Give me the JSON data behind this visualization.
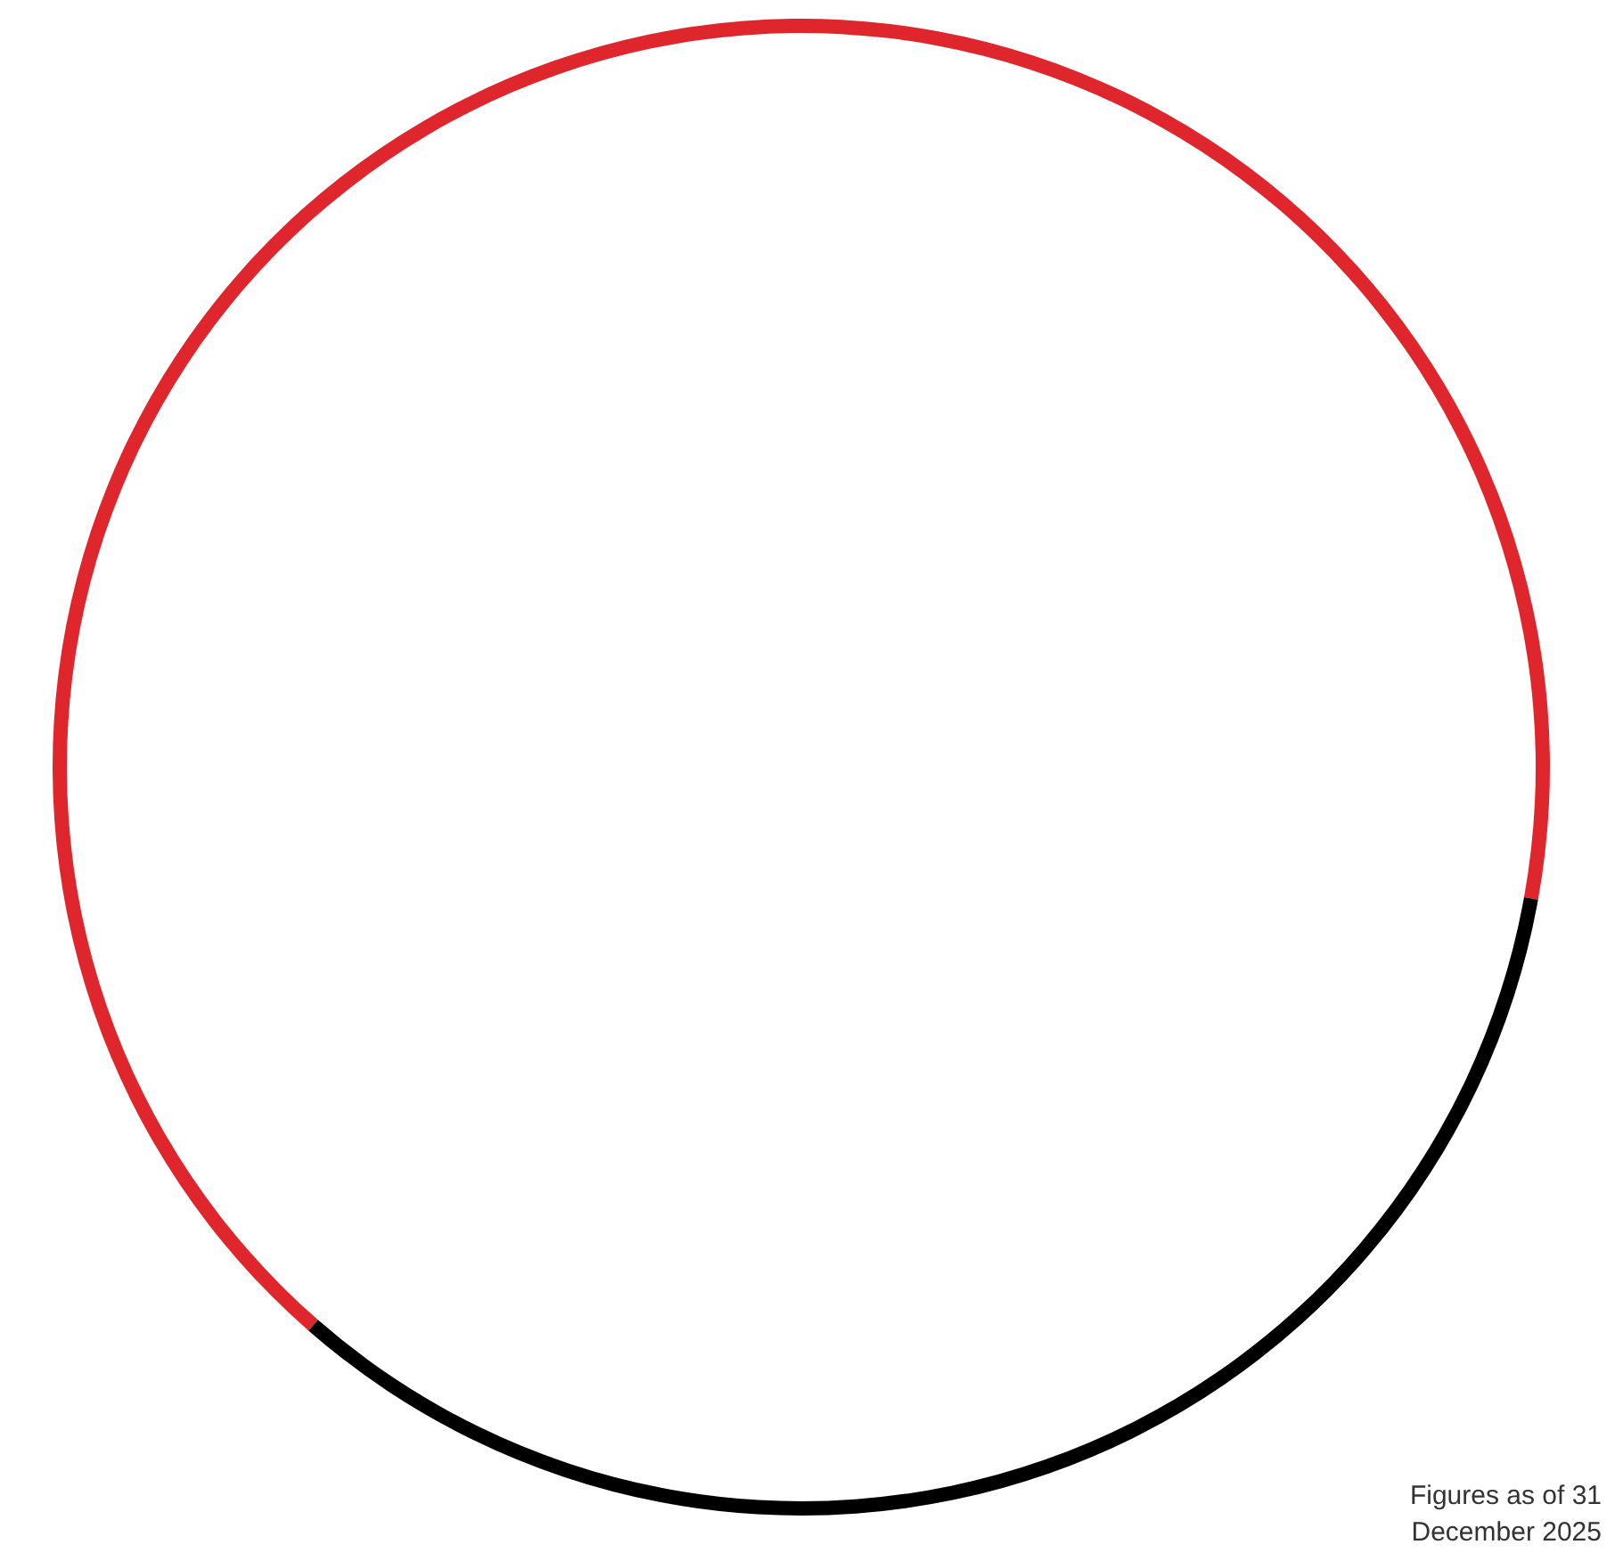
{
  "chart_data": {
    "type": "donut",
    "categories": [
      null,
      null
    ],
    "values": [
      66.4,
      33.6
    ],
    "colors": [
      "#e0262d",
      "#000000"
    ],
    "annotations": [
      "Figures as of 31 December 2025"
    ]
  }
}
